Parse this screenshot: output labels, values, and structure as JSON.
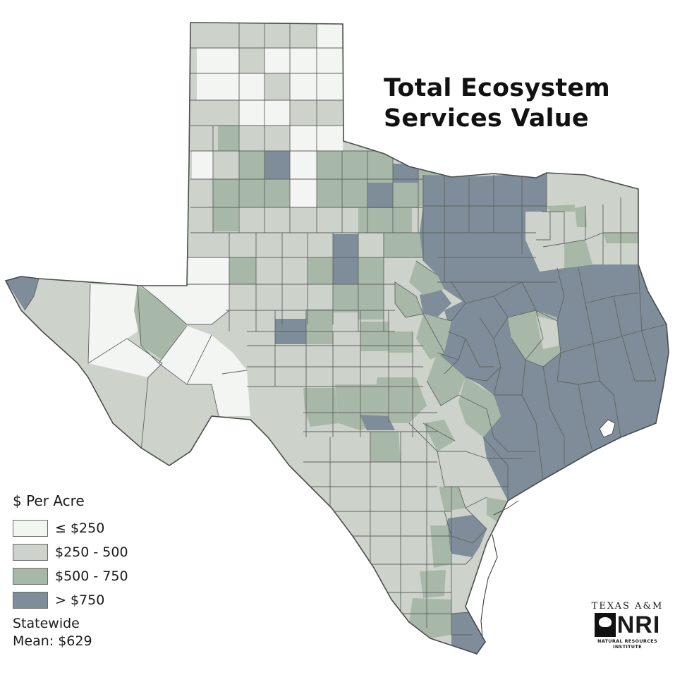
{
  "title": {
    "line1": "Total Ecosystem",
    "line2": "Services Value"
  },
  "legend": {
    "title": "$ Per Acre",
    "items": [
      {
        "label": "≤ $250",
        "color": "#f3f5f3"
      },
      {
        "label": "$250 - 500",
        "color": "#cdd3cb"
      },
      {
        "label": "$500 - 750",
        "color": "#a8b8a8"
      },
      {
        "label": "> $750",
        "color": "#7e8d99"
      }
    ]
  },
  "statewide": {
    "line1": "Statewide",
    "line2": "Mean: $629"
  },
  "logo": {
    "top": "TEXAS A&M",
    "acronym": "NRI",
    "bottom": "NATURAL RESOURCES INSTITUTE",
    "icon": "tree-icon"
  },
  "colors": {
    "border": "#5f6360",
    "outline": "#4a4d4b"
  }
}
